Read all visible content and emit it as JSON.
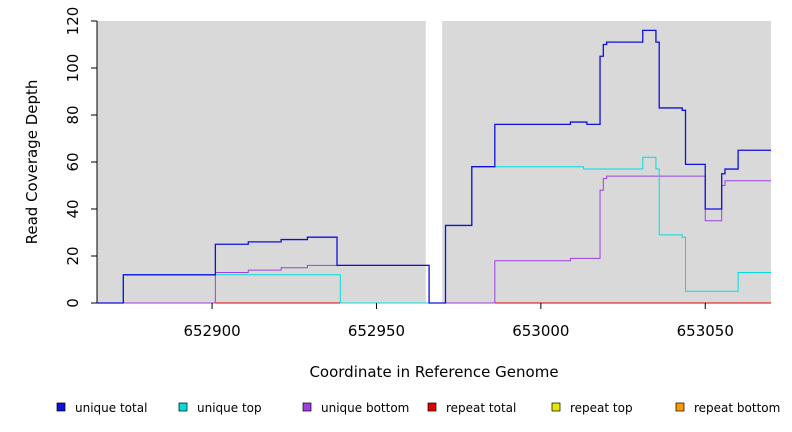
{
  "chart_data": {
    "type": "line",
    "title": "",
    "xlabel": "Coordinate in Reference Genome",
    "ylabel": "Read Coverage Depth",
    "xlim": [
      652865,
      653070
    ],
    "ylim": [
      0,
      120
    ],
    "x_ticks": [
      652900,
      652950,
      653000,
      653050
    ],
    "y_ticks": [
      0,
      20,
      40,
      60,
      80,
      100,
      120
    ],
    "x_tick_labels": [
      "652900",
      "652950",
      "653000",
      "653050"
    ],
    "y_tick_labels": [
      "0",
      "20",
      "40",
      "60",
      "80",
      "100",
      "120"
    ],
    "background_regions": [
      {
        "x_start": 652865,
        "x_end": 652965
      },
      {
        "x_start": 652970,
        "x_end": 653070
      }
    ],
    "legend_position": "bottom",
    "series": [
      {
        "name": "unique total",
        "color": "#1010dd",
        "steps": [
          [
            652865,
            0
          ],
          [
            652873,
            12
          ],
          [
            652901,
            25
          ],
          [
            652911,
            26
          ],
          [
            652921,
            27
          ],
          [
            652929,
            28
          ],
          [
            652938,
            16
          ],
          [
            652966,
            0
          ],
          [
            652971,
            33
          ],
          [
            652979,
            58
          ],
          [
            652986,
            76
          ],
          [
            653009,
            77
          ],
          [
            653014,
            76
          ],
          [
            653018,
            105
          ],
          [
            653019,
            110
          ],
          [
            653020,
            111
          ],
          [
            653031,
            116
          ],
          [
            653035,
            111
          ],
          [
            653036,
            83
          ],
          [
            653043,
            82
          ],
          [
            653044,
            59
          ],
          [
            653050,
            40
          ],
          [
            653055,
            55
          ],
          [
            653056,
            57
          ],
          [
            653060,
            65
          ],
          [
            653070,
            65
          ]
        ]
      },
      {
        "name": "unique top",
        "color": "#00dddd",
        "steps": [
          [
            652865,
            0
          ],
          [
            652873,
            12
          ],
          [
            652901,
            12
          ],
          [
            652939,
            0
          ],
          [
            652966,
            0
          ],
          [
            652971,
            33
          ],
          [
            652979,
            58
          ],
          [
            653013,
            57
          ],
          [
            653031,
            62
          ],
          [
            653035,
            57
          ],
          [
            653036,
            29
          ],
          [
            653043,
            28
          ],
          [
            653044,
            5
          ],
          [
            653060,
            13
          ],
          [
            653070,
            13
          ]
        ]
      },
      {
        "name": "unique bottom",
        "color": "#a040e0",
        "steps": [
          [
            652865,
            0
          ],
          [
            652901,
            13
          ],
          [
            652911,
            14
          ],
          [
            652921,
            15
          ],
          [
            652929,
            16
          ],
          [
            652966,
            0
          ],
          [
            652986,
            18
          ],
          [
            653009,
            19
          ],
          [
            653018,
            48
          ],
          [
            653019,
            53
          ],
          [
            653020,
            54
          ],
          [
            653050,
            35
          ],
          [
            653055,
            50
          ],
          [
            653056,
            52
          ],
          [
            653070,
            52
          ]
        ]
      },
      {
        "name": "repeat total",
        "color": "#e00000",
        "steps": [
          [
            652865,
            0
          ],
          [
            653070,
            0
          ]
        ]
      },
      {
        "name": "repeat top",
        "color": "#e6e600",
        "steps": [
          [
            652865,
            0
          ],
          [
            653070,
            0
          ]
        ]
      },
      {
        "name": "repeat bottom",
        "color": "#ff9900",
        "steps": [
          [
            652865,
            0
          ],
          [
            653070,
            0
          ]
        ]
      }
    ]
  }
}
